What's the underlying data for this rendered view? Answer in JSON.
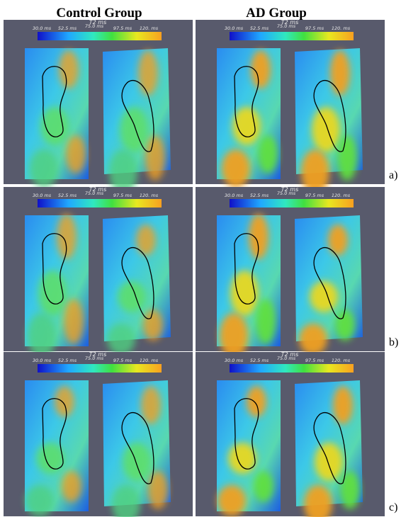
{
  "headers": [
    "Control Group",
    "AD Group"
  ],
  "colorbar": {
    "title": "T2 ms",
    "ticks": [
      "30.0  ms",
      "52.5  ms",
      "75.0  ms",
      "97.5  ms",
      "120.  ms"
    ]
  },
  "rows": [
    "a)",
    "b)",
    "c)"
  ]
}
